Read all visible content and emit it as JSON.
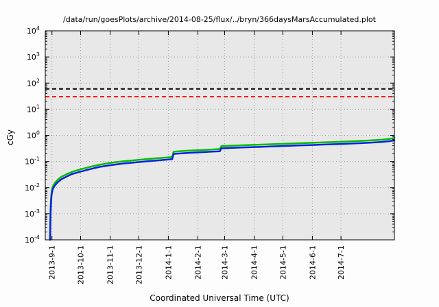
{
  "chart_data": {
    "type": "line",
    "title": "/data/run/goesPlots/archive/2014-08-25/flux/../bryn/366daysMarsAccumulated.plot",
    "xlabel": "Coordinated Universal Time (UTC)",
    "ylabel": "cGy",
    "y_scale": "log",
    "ylim": [
      0.0001,
      10000
    ],
    "y_tick_exponents": [
      4,
      3,
      2,
      1,
      0,
      -1,
      -2,
      -3,
      -4
    ],
    "x_range_days": [
      0,
      366
    ],
    "x_ticks": [
      {
        "label": "2013-9-1",
        "day": 7
      },
      {
        "label": "2013-10-1",
        "day": 37
      },
      {
        "label": "2013-11-1",
        "day": 68
      },
      {
        "label": "2013-12-1",
        "day": 98
      },
      {
        "label": "2014-1-1",
        "day": 129
      },
      {
        "label": "2014-2-1",
        "day": 160
      },
      {
        "label": "2014-3-1",
        "day": 188
      },
      {
        "label": "2014-4-1",
        "day": 219
      },
      {
        "label": "2014-5-1",
        "day": 249
      },
      {
        "label": "2014-6-1",
        "day": 280
      },
      {
        "label": "2014-7-1",
        "day": 310
      }
    ],
    "grid": true,
    "legend": "none",
    "colors": {
      "plot_bg": "#e8e8e8",
      "grid": "#9a9a9a",
      "axis": "#000000",
      "green": "#00bb00",
      "blue": "#0022dd",
      "black_limit": "#000000",
      "red_limit": "#ee1100"
    },
    "reference_lines": [
      {
        "name": "black-dashed-limit",
        "color": "#000000",
        "style": "dashed",
        "value_cGy": 60
      },
      {
        "name": "red-dashed-limit",
        "color": "#ee1100",
        "style": "dashed",
        "value_cGy": 30
      }
    ],
    "series": [
      {
        "name": "accumulated-dose-green",
        "color": "#00bb00",
        "points": [
          [
            5,
            0.0001
          ],
          [
            5.4,
            0.0008
          ],
          [
            5.8,
            0.0025
          ],
          [
            6.3,
            0.005
          ],
          [
            7,
            0.008
          ],
          [
            8,
            0.011
          ],
          [
            10,
            0.015
          ],
          [
            13,
            0.02
          ],
          [
            17,
            0.026
          ],
          [
            22,
            0.032
          ],
          [
            28,
            0.04
          ],
          [
            37,
            0.05
          ],
          [
            47,
            0.062
          ],
          [
            57,
            0.075
          ],
          [
            68,
            0.088
          ],
          [
            80,
            0.1
          ],
          [
            98,
            0.115
          ],
          [
            112,
            0.128
          ],
          [
            125,
            0.14
          ],
          [
            133,
            0.148
          ],
          [
            134.5,
            0.235
          ],
          [
            140,
            0.245
          ],
          [
            150,
            0.258
          ],
          [
            162,
            0.272
          ],
          [
            175,
            0.288
          ],
          [
            183,
            0.298
          ],
          [
            184.5,
            0.385
          ],
          [
            192,
            0.398
          ],
          [
            205,
            0.415
          ],
          [
            219,
            0.432
          ],
          [
            234,
            0.452
          ],
          [
            249,
            0.472
          ],
          [
            265,
            0.495
          ],
          [
            280,
            0.518
          ],
          [
            295,
            0.542
          ],
          [
            310,
            0.568
          ],
          [
            325,
            0.6
          ],
          [
            340,
            0.635
          ],
          [
            353,
            0.68
          ],
          [
            361,
            0.73
          ],
          [
            366,
            0.8
          ]
        ]
      },
      {
        "name": "accumulated-dose-blue",
        "color": "#0022dd",
        "points": [
          [
            5,
            0.0001
          ],
          [
            5.4,
            0.00065
          ],
          [
            5.8,
            0.002
          ],
          [
            6.3,
            0.004
          ],
          [
            7,
            0.0065
          ],
          [
            8,
            0.009
          ],
          [
            10,
            0.012
          ],
          [
            13,
            0.016
          ],
          [
            17,
            0.021
          ],
          [
            22,
            0.026
          ],
          [
            28,
            0.033
          ],
          [
            37,
            0.041
          ],
          [
            47,
            0.051
          ],
          [
            57,
            0.062
          ],
          [
            68,
            0.072
          ],
          [
            80,
            0.082
          ],
          [
            98,
            0.095
          ],
          [
            112,
            0.105
          ],
          [
            125,
            0.115
          ],
          [
            133,
            0.122
          ],
          [
            134.5,
            0.195
          ],
          [
            140,
            0.202
          ],
          [
            150,
            0.213
          ],
          [
            162,
            0.224
          ],
          [
            175,
            0.237
          ],
          [
            183,
            0.245
          ],
          [
            184.5,
            0.318
          ],
          [
            192,
            0.328
          ],
          [
            205,
            0.342
          ],
          [
            219,
            0.356
          ],
          [
            234,
            0.372
          ],
          [
            249,
            0.389
          ],
          [
            265,
            0.408
          ],
          [
            280,
            0.427
          ],
          [
            295,
            0.447
          ],
          [
            310,
            0.468
          ],
          [
            325,
            0.494
          ],
          [
            340,
            0.523
          ],
          [
            353,
            0.56
          ],
          [
            361,
            0.6
          ],
          [
            366,
            0.65
          ]
        ]
      }
    ]
  }
}
